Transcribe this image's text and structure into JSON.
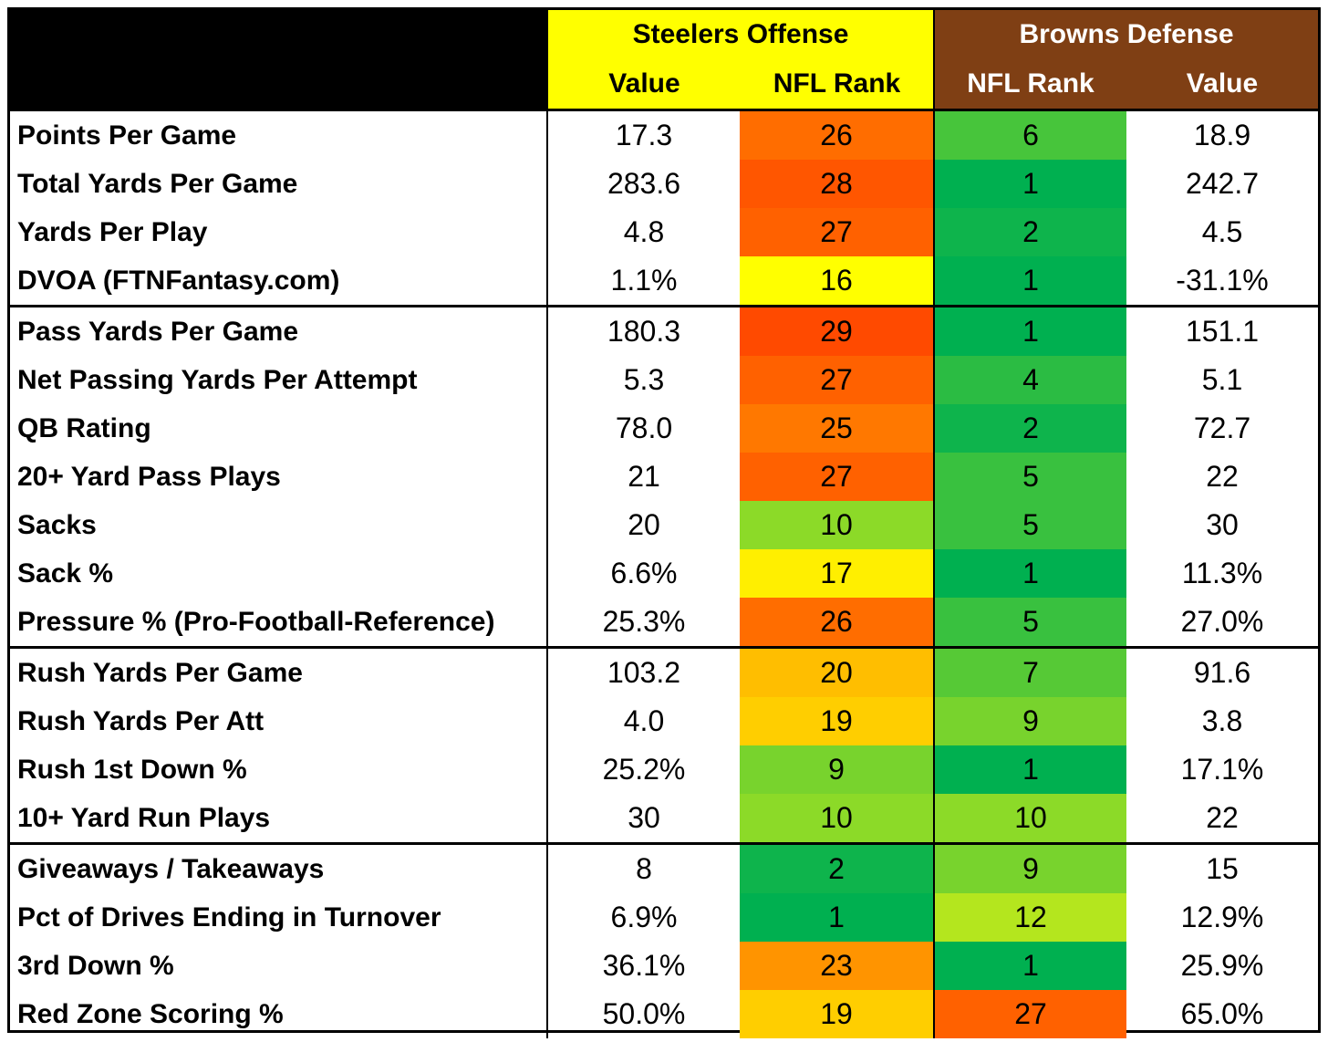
{
  "header": {
    "offense_title": "Steelers Offense",
    "defense_title": "Browns Defense",
    "offense_col1": "Value",
    "offense_col2": "NFL Rank",
    "defense_col1": "NFL Rank",
    "defense_col2": "Value"
  },
  "colors": {
    "offense_header_bg": "#ffff00",
    "defense_header_bg": "#7f3f14"
  },
  "groups": [
    [
      {
        "label": "Points Per Game",
        "off_value": "17.3",
        "off_rank": "26",
        "def_rank": "6",
        "def_value": "18.9"
      },
      {
        "label": "Total Yards Per Game",
        "off_value": "283.6",
        "off_rank": "28",
        "def_rank": "1",
        "def_value": "242.7"
      },
      {
        "label": "Yards Per Play",
        "off_value": "4.8",
        "off_rank": "27",
        "def_rank": "2",
        "def_value": "4.5"
      },
      {
        "label": "DVOA (FTNFantasy.com)",
        "off_value": "1.1%",
        "off_rank": "16",
        "def_rank": "1",
        "def_value": "-31.1%"
      }
    ],
    [
      {
        "label": "Pass Yards Per Game",
        "off_value": "180.3",
        "off_rank": "29",
        "def_rank": "1",
        "def_value": "151.1"
      },
      {
        "label": "Net Passing Yards Per Attempt",
        "off_value": "5.3",
        "off_rank": "27",
        "def_rank": "4",
        "def_value": "5.1"
      },
      {
        "label": "QB Rating",
        "off_value": "78.0",
        "off_rank": "25",
        "def_rank": "2",
        "def_value": "72.7"
      },
      {
        "label": "20+ Yard Pass Plays",
        "off_value": "21",
        "off_rank": "27",
        "def_rank": "5",
        "def_value": "22"
      },
      {
        "label": "Sacks",
        "off_value": "20",
        "off_rank": "10",
        "def_rank": "5",
        "def_value": "30"
      },
      {
        "label": "Sack %",
        "off_value": "6.6%",
        "off_rank": "17",
        "def_rank": "1",
        "def_value": "11.3%"
      },
      {
        "label": "Pressure % (Pro-Football-Reference)",
        "off_value": "25.3%",
        "off_rank": "26",
        "def_rank": "5",
        "def_value": "27.0%"
      }
    ],
    [
      {
        "label": "Rush Yards Per Game",
        "off_value": "103.2",
        "off_rank": "20",
        "def_rank": "7",
        "def_value": "91.6"
      },
      {
        "label": "Rush Yards Per Att",
        "off_value": "4.0",
        "off_rank": "19",
        "def_rank": "9",
        "def_value": "3.8"
      },
      {
        "label": "Rush 1st Down %",
        "off_value": "25.2%",
        "off_rank": "9",
        "def_rank": "1",
        "def_value": "17.1%"
      },
      {
        "label": "10+ Yard Run Plays",
        "off_value": "30",
        "off_rank": "10",
        "def_rank": "10",
        "def_value": "22"
      }
    ],
    [
      {
        "label": "Giveaways / Takeaways",
        "off_value": "8",
        "off_rank": "2",
        "def_rank": "9",
        "def_value": "15"
      },
      {
        "label": "Pct of Drives Ending in Turnover",
        "off_value": "6.9%",
        "off_rank": "1",
        "def_rank": "12",
        "def_value": "12.9%"
      },
      {
        "label": "3rd Down %",
        "off_value": "36.1%",
        "off_rank": "23",
        "def_rank": "1",
        "def_value": "25.9%"
      },
      {
        "label": "Red Zone Scoring %",
        "off_value": "50.0%",
        "off_rank": "19",
        "def_rank": "27",
        "def_value": "65.0%"
      }
    ]
  ]
}
